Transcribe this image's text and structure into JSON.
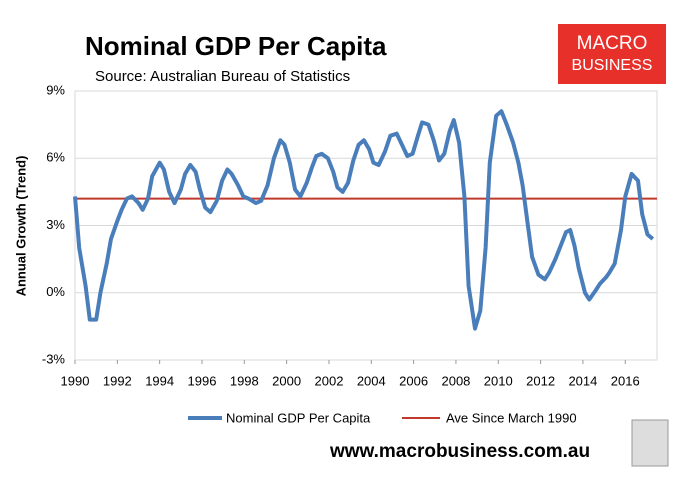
{
  "chart_data": {
    "type": "line",
    "title": "Nominal GDP Per Capita",
    "subtitle": "Source: Australian Bureau of Statistics",
    "y_label": "Annual Growth (Trend)",
    "logo": {
      "line1": "MACRO",
      "line2": "BUSINESS"
    },
    "footer": "www.macrobusiness.com.au",
    "x": [
      1990.0,
      1990.2,
      1990.5,
      1990.7,
      1991.0,
      1991.2,
      1991.5,
      1991.7,
      1992.0,
      1992.2,
      1992.45,
      1992.7,
      1993.0,
      1993.2,
      1993.45,
      1993.65,
      1994.0,
      1994.2,
      1994.45,
      1994.7,
      1995.0,
      1995.2,
      1995.45,
      1995.7,
      1995.9,
      1996.15,
      1996.4,
      1996.7,
      1996.95,
      1997.2,
      1997.4,
      1997.7,
      1997.95,
      1998.2,
      1998.55,
      1998.8,
      1999.1,
      1999.4,
      1999.7,
      1999.9,
      2000.15,
      2000.4,
      2000.65,
      2000.95,
      2001.2,
      2001.4,
      2001.65,
      2001.95,
      2002.2,
      2002.4,
      2002.65,
      2002.9,
      2003.15,
      2003.4,
      2003.65,
      2003.9,
      2004.1,
      2004.35,
      2004.65,
      2004.9,
      2005.2,
      2005.45,
      2005.7,
      2005.95,
      2006.2,
      2006.4,
      2006.7,
      2006.95,
      2007.2,
      2007.45,
      2007.7,
      2007.9,
      2008.15,
      2008.4,
      2008.6,
      2008.9,
      2009.15,
      2009.4,
      2009.6,
      2009.9,
      2010.15,
      2010.4,
      2010.7,
      2010.95,
      2011.15,
      2011.4,
      2011.6,
      2011.9,
      2012.2,
      2012.4,
      2012.7,
      2012.95,
      2013.2,
      2013.4,
      2013.6,
      2013.8,
      2014.1,
      2014.3,
      2014.6,
      2014.8,
      2015.1,
      2015.25,
      2015.5,
      2015.8,
      2016.0,
      2016.3,
      2016.6,
      2016.8,
      2017.05,
      2017.3
    ],
    "series": [
      {
        "name": "Nominal GDP Per Capita",
        "color": "#4a7ebb",
        "values": [
          4.3,
          2.0,
          0.3,
          -1.2,
          -1.2,
          0.0,
          1.3,
          2.4,
          3.2,
          3.7,
          4.2,
          4.3,
          4.0,
          3.7,
          4.2,
          5.2,
          5.8,
          5.5,
          4.5,
          4.0,
          4.6,
          5.3,
          5.7,
          5.4,
          4.6,
          3.8,
          3.6,
          4.1,
          5.0,
          5.5,
          5.3,
          4.8,
          4.3,
          4.2,
          4.0,
          4.1,
          4.8,
          6.0,
          6.8,
          6.6,
          5.8,
          4.6,
          4.3,
          4.9,
          5.6,
          6.1,
          6.2,
          6.0,
          5.4,
          4.7,
          4.5,
          4.9,
          5.9,
          6.6,
          6.8,
          6.4,
          5.8,
          5.7,
          6.3,
          7.0,
          7.1,
          6.6,
          6.1,
          6.2,
          7.0,
          7.6,
          7.5,
          6.8,
          5.9,
          6.2,
          7.2,
          7.7,
          6.7,
          4.3,
          0.3,
          -1.6,
          -0.8,
          2.0,
          5.8,
          7.9,
          8.1,
          7.5,
          6.7,
          5.8,
          4.8,
          3.0,
          1.6,
          0.8,
          0.6,
          0.9,
          1.5,
          2.1,
          2.7,
          2.8,
          2.1,
          1.1,
          0.0,
          -0.3,
          0.1,
          0.4,
          0.7,
          0.9,
          1.3,
          2.8,
          4.3,
          5.3,
          5.0,
          3.5,
          2.6,
          2.4
        ]
      }
    ],
    "average": {
      "name": "Ave Since March 1990",
      "color": "#c0392b",
      "value": 4.2
    },
    "xlim": [
      1990,
      2017.5
    ],
    "xticks": [
      1990,
      1992,
      1994,
      1996,
      1998,
      2000,
      2002,
      2004,
      2006,
      2008,
      2010,
      2012,
      2014,
      2016
    ],
    "ylim": [
      -3,
      9
    ],
    "yticks": [
      {
        "value": -3,
        "label": "-3%"
      },
      {
        "value": 0,
        "label": "0%"
      },
      {
        "value": 3,
        "label": "3%"
      },
      {
        "value": 6,
        "label": "6%"
      },
      {
        "value": 9,
        "label": "9%"
      }
    ],
    "grid": true
  }
}
